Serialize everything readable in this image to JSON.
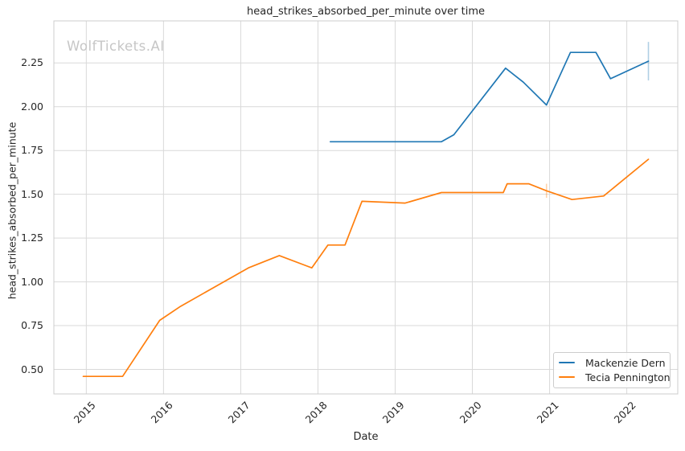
{
  "chart_data": {
    "type": "line",
    "title": "head_strikes_absorbed_per_minute over time",
    "xlabel": "Date",
    "ylabel": "head_strikes_absorbed_per_minute",
    "watermark": "WolfTickets.AI",
    "xlim": [
      2014.58,
      2022.66
    ],
    "ylim": [
      0.36,
      2.49
    ],
    "x_ticks": [
      2015,
      2016,
      2017,
      2018,
      2019,
      2020,
      2021,
      2022
    ],
    "x_tick_labels": [
      "2015",
      "2016",
      "2017",
      "2018",
      "2019",
      "2020",
      "2021",
      "2022"
    ],
    "y_ticks": [
      0.5,
      0.75,
      1.0,
      1.25,
      1.5,
      1.75,
      2.0,
      2.25
    ],
    "y_tick_labels": [
      "0.50",
      "0.75",
      "1.00",
      "1.25",
      "1.50",
      "1.75",
      "2.00",
      "2.25"
    ],
    "grid": true,
    "legend_position": "lower right",
    "series": [
      {
        "name": "Mackenzie Dern",
        "color": "#1f77b4",
        "x": [
          2018.16,
          2019.6,
          2019.76,
          2020.43,
          2020.66,
          2020.96,
          2021.27,
          2021.6,
          2021.79,
          2022.28
        ],
        "y": [
          1.8,
          1.8,
          1.84,
          2.22,
          2.14,
          2.01,
          2.31,
          2.31,
          2.16,
          2.26
        ],
        "error_bar": {
          "x": 2022.28,
          "y_low": 2.15,
          "y_high": 2.37
        }
      },
      {
        "name": "Tecia Pennington",
        "color": "#ff7f0e",
        "x": [
          2014.96,
          2015.47,
          2015.95,
          2016.22,
          2017.1,
          2017.5,
          2017.92,
          2018.13,
          2018.35,
          2018.57,
          2019.13,
          2019.6,
          2020.4,
          2020.45,
          2020.73,
          2020.96,
          2021.29,
          2021.7,
          2022.28
        ],
        "y": [
          0.46,
          0.46,
          0.78,
          0.86,
          1.08,
          1.15,
          1.08,
          1.21,
          1.21,
          1.46,
          1.45,
          1.51,
          1.51,
          1.56,
          1.56,
          1.52,
          1.47,
          1.49,
          1.7
        ],
        "error_bar": {
          "x": 2020.96,
          "y_low": 1.48,
          "y_high": 1.56
        }
      }
    ]
  },
  "colors": {
    "background": "#ffffff",
    "grid": "#d9d9d9",
    "spine": "#cccccc",
    "text": "#262626",
    "watermark": "#c6c6c6"
  }
}
